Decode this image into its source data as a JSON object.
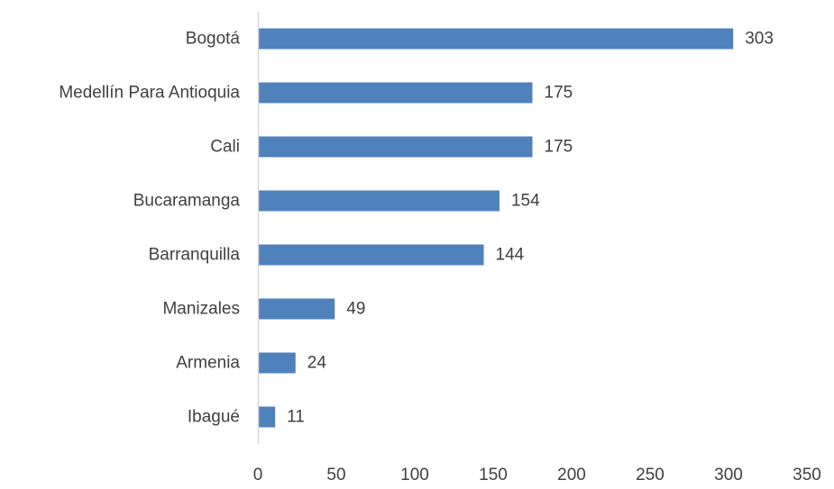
{
  "chart_data": {
    "type": "bar",
    "orientation": "horizontal",
    "title": "",
    "xlabel": "",
    "ylabel": "",
    "categories": [
      "Bogotá",
      "Medellín Para Antioquia",
      "Cali",
      "Bucaramanga",
      "Barranquilla",
      "Manizales",
      "Armenia",
      "Ibagué"
    ],
    "values": [
      303,
      175,
      175,
      154,
      144,
      49,
      24,
      11
    ],
    "xlim": [
      0,
      350
    ],
    "xticks": [
      0,
      50,
      100,
      150,
      200,
      250,
      300,
      350
    ],
    "grid": false,
    "legend": "none",
    "data_labels": true,
    "colors": {
      "bar": "#4f81bd",
      "axis": "#d9d9d9",
      "text": "#404040"
    }
  }
}
